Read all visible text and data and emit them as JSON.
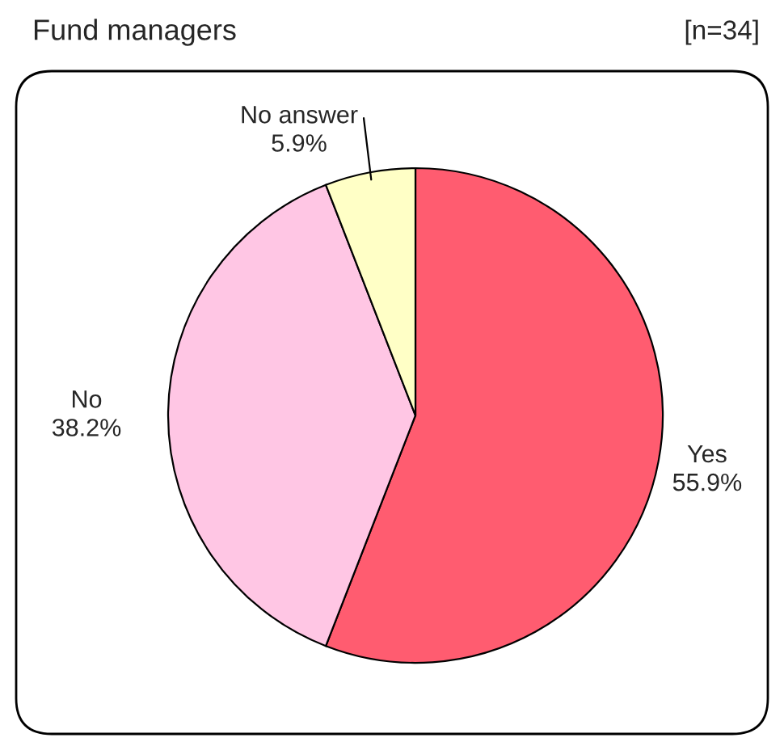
{
  "chart_data": {
    "type": "pie",
    "title": "Fund managers",
    "annotations": [
      "[n=34]"
    ],
    "categories": [
      "Yes",
      "No",
      "No answer"
    ],
    "values": [
      55.9,
      38.2,
      5.9
    ],
    "value_labels": [
      "55.9%",
      "38.2%",
      "5.9%"
    ],
    "colors": [
      "#ff5c70",
      "#ffc6e4",
      "#ffffc6"
    ]
  }
}
